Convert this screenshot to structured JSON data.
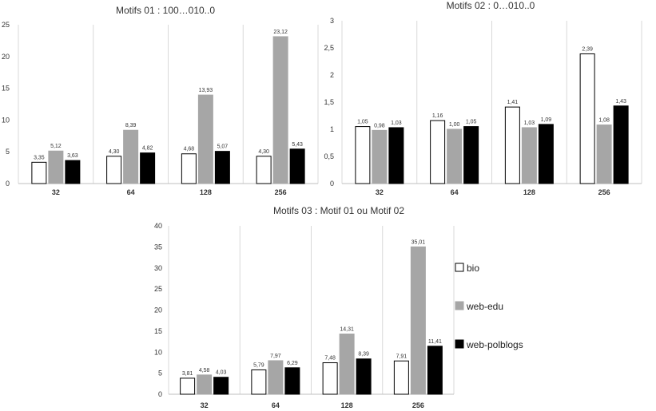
{
  "chart_data": [
    {
      "type": "bar",
      "title": "Motifs 01 : 100…010..0",
      "categories": [
        "32",
        "64",
        "128",
        "256"
      ],
      "series": [
        {
          "name": "bio",
          "values": [
            3.35,
            4.3,
            4.68,
            4.3
          ],
          "labels": [
            "3,35",
            "4,30",
            "4,68",
            "4,30"
          ]
        },
        {
          "name": "web-edu",
          "values": [
            5.12,
            8.39,
            13.93,
            23.12
          ],
          "labels": [
            "5,12",
            "8,39",
            "13,93",
            "23,12"
          ]
        },
        {
          "name": "web-polblogs",
          "values": [
            3.63,
            4.82,
            5.07,
            5.43
          ],
          "labels": [
            "3,63",
            "4,82",
            "5,07",
            "5,43"
          ]
        }
      ],
      "ylim": [
        0,
        25
      ],
      "yticks": [
        "0",
        "5",
        "10",
        "15",
        "20",
        "25"
      ],
      "grid": "vertical category separators"
    },
    {
      "type": "bar",
      "title": "Motifs 02 : 0…010..0",
      "categories": [
        "32",
        "64",
        "128",
        "256"
      ],
      "series": [
        {
          "name": "bio",
          "values": [
            1.05,
            1.16,
            1.41,
            2.39
          ],
          "labels": [
            "1,05",
            "1,16",
            "1,41",
            "2,39"
          ]
        },
        {
          "name": "web-edu",
          "values": [
            0.98,
            1.0,
            1.03,
            1.08
          ],
          "labels": [
            "0,98",
            "1,00",
            "1,03",
            "1,08"
          ]
        },
        {
          "name": "web-polblogs",
          "values": [
            1.03,
            1.05,
            1.09,
            1.43
          ],
          "labels": [
            "1,03",
            "1,05",
            "1,09",
            "1,43"
          ]
        }
      ],
      "ylim": [
        0,
        3
      ],
      "yticks": [
        "0",
        "0,5",
        "1",
        "1,5",
        "2",
        "2,5",
        "3"
      ],
      "grid": "vertical category separators"
    },
    {
      "type": "bar",
      "title": "Motifs 03 : Motif 01 ou Motif 02",
      "categories": [
        "32",
        "64",
        "128",
        "256"
      ],
      "series": [
        {
          "name": "bio",
          "values": [
            3.81,
            5.79,
            7.48,
            7.91
          ],
          "labels": [
            "3,81",
            "5,79",
            "7,48",
            "7,91"
          ]
        },
        {
          "name": "web-edu",
          "values": [
            4.58,
            7.97,
            14.31,
            35.01
          ],
          "labels": [
            "4,58",
            "7,97",
            "14,31",
            "35,01"
          ]
        },
        {
          "name": "web-polblogs",
          "values": [
            4.03,
            6.29,
            8.39,
            11.41
          ],
          "labels": [
            "4,03",
            "6,29",
            "8,39",
            "11,41"
          ]
        }
      ],
      "ylim": [
        0,
        40
      ],
      "yticks": [
        "0",
        "5",
        "10",
        "15",
        "20",
        "25",
        "30",
        "35",
        "40"
      ],
      "grid": "vertical category separators",
      "legend": "right"
    }
  ],
  "legend": {
    "items": [
      {
        "label": "bio",
        "fill": "#ffffff",
        "stroke": "#000000"
      },
      {
        "label": "web-edu",
        "fill": "#a6a6a6",
        "stroke": "#a6a6a6"
      },
      {
        "label": "web-polblogs",
        "fill": "#000000",
        "stroke": "#000000"
      }
    ]
  },
  "colors": {
    "bio": "#ffffff",
    "web-edu": "#a6a6a6",
    "web-polblogs": "#000000",
    "separator": "#d9d9d9",
    "axis": "#bfbfbf"
  }
}
